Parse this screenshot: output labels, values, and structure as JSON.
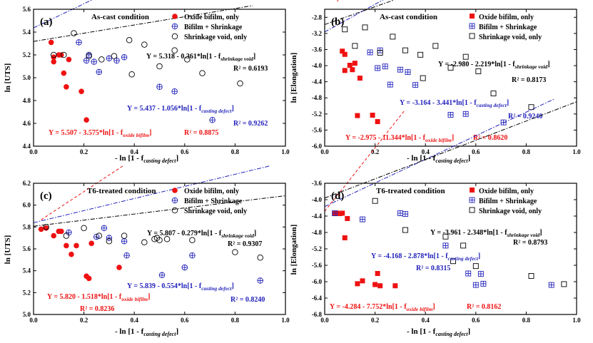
{
  "colors": {
    "oxide": "#ee1111",
    "bifilm": "#2222bb",
    "shrink": "#000000",
    "axis": "#000000"
  },
  "chart_data": [
    {
      "type": "scatter",
      "panel_label": "(a)",
      "title": "As-cast condition",
      "xlabel": "- ln [1 - f casting defect]",
      "ylabel": "ln [UTS]",
      "xlim": [
        0.0,
        1.0
      ],
      "ylim": [
        4.4,
        5.6
      ],
      "xticks": [
        "0.0",
        "0.2",
        "0.4",
        "0.6",
        "0.8",
        "1.0"
      ],
      "yticks": [
        "4.4",
        "4.6",
        "4.8",
        "5.0",
        "5.2",
        "5.4",
        "5.6"
      ],
      "legend": {
        "position": "top-right",
        "entries": [
          "Oxide bifilm, only",
          "Bifilm + Shrinkage",
          "Shrinkage void, only"
        ]
      },
      "series": [
        {
          "name": "Oxide bifilm, only",
          "x": [
            0.07,
            0.08,
            0.08,
            0.1,
            0.11,
            0.12,
            0.13,
            0.14,
            0.19,
            0.21
          ],
          "y": [
            5.31,
            5.14,
            5.18,
            5.2,
            5.2,
            5.04,
            4.92,
            5.16,
            4.88,
            4.63
          ]
        },
        {
          "name": "Bifilm + Shrinkage",
          "x": [
            0.18,
            0.21,
            0.22,
            0.24,
            0.26,
            0.3,
            0.33,
            0.36,
            0.5,
            0.56,
            0.71
          ],
          "y": [
            5.31,
            5.15,
            5.2,
            5.14,
            5.05,
            5.17,
            5.15,
            5.18,
            4.92,
            4.88,
            4.63
          ]
        },
        {
          "name": "Shrinkage void, only",
          "x": [
            0.08,
            0.12,
            0.16,
            0.22,
            0.27,
            0.32,
            0.38,
            0.39,
            0.44,
            0.5,
            0.56,
            0.61,
            0.67,
            0.82
          ],
          "y": [
            5.2,
            5.2,
            5.39,
            5.19,
            5.16,
            5.19,
            5.33,
            5.03,
            5.29,
            5.1,
            5.24,
            5.16,
            5.04,
            4.95
          ]
        }
      ],
      "fits": [
        {
          "name": "oxide",
          "equation": "Y = 5.507 - 3.575*ln[1 - f oxide bifilm]",
          "r2": "R² = 0.8875",
          "intercept": 5.507,
          "slope": 3.575,
          "x_range": [
            0.05,
            0.22
          ]
        },
        {
          "name": "bifilm",
          "equation": "Y = 5.437 - 1.056*ln[1 - f casting defect]",
          "r2": "R² = 0.9262",
          "intercept": 5.437,
          "slope": 1.056,
          "x_range": [
            0.0,
            0.76
          ]
        },
        {
          "name": "shrink",
          "equation": "Y = 5.318 - 0.361*ln[1 - f shrinkage void]",
          "r2": "R² = 0.6193",
          "intercept": 5.318,
          "slope": 0.361,
          "x_range": [
            0.0,
            0.87
          ]
        }
      ]
    },
    {
      "type": "scatter",
      "panel_label": "(b)",
      "title": "As-cast condition",
      "xlabel": "- ln [1 - f casting defect]",
      "ylabel": "ln [Elongation]",
      "xlim": [
        0.0,
        1.0
      ],
      "ylim": [
        -6.0,
        -2.6
      ],
      "xticks": [
        "0.0",
        "0.2",
        "0.4",
        "0.6",
        "0.8",
        "1.0"
      ],
      "yticks": [
        "-2.8",
        "-3.2",
        "-3.6",
        "-4.0",
        "-4.4",
        "-4.8",
        "-5.2",
        "-5.6",
        "-6.0"
      ],
      "legend": {
        "position": "top-right",
        "entries": [
          "Oxide bifilm, only",
          "Bifilm + Shrinkage",
          "Shrinkage void, only"
        ]
      },
      "series": [
        {
          "name": "Oxide bifilm, only",
          "x": [
            0.07,
            0.08,
            0.08,
            0.1,
            0.11,
            0.12,
            0.13,
            0.14,
            0.19,
            0.21
          ],
          "y": [
            -3.64,
            -3.72,
            -4.12,
            -3.99,
            -4.1,
            -3.94,
            -5.24,
            -4.31,
            -5.23,
            -5.39
          ]
        },
        {
          "name": "Bifilm + Shrinkage",
          "x": [
            0.18,
            0.21,
            0.22,
            0.24,
            0.26,
            0.3,
            0.33,
            0.36,
            0.5,
            0.56,
            0.71
          ],
          "y": [
            -3.67,
            -4.06,
            -3.62,
            -4.02,
            -4.47,
            -4.1,
            -4.16,
            -4.48,
            -5.22,
            -5.2,
            -5.41
          ]
        },
        {
          "name": "Shrinkage void, only",
          "x": [
            0.08,
            0.12,
            0.16,
            0.22,
            0.27,
            0.32,
            0.38,
            0.39,
            0.44,
            0.5,
            0.56,
            0.61,
            0.67,
            0.82
          ],
          "y": [
            -3.1,
            -3.51,
            -3.05,
            -3.68,
            -3.28,
            -3.62,
            -3.73,
            -4.31,
            -3.51,
            -4.05,
            -3.78,
            -4.14,
            -4.69,
            -5.03
          ]
        }
      ],
      "fits": [
        {
          "name": "oxide",
          "equation": "Y = -2.975 - 11.344*ln[1 - f oxide bifilm]",
          "r2": "R² = 0.8620",
          "intercept": -2.975,
          "slope": 11.344,
          "x_range": [
            0.05,
            0.22
          ]
        },
        {
          "name": "bifilm",
          "equation": "Y = -3.164 - 3.441*ln[1 - f casting defect]",
          "r2": "R² = 0.9240",
          "intercept": -3.164,
          "slope": 3.441,
          "x_range": [
            0.0,
            0.76
          ]
        },
        {
          "name": "shrink",
          "equation": "Y = -2.980 - 2.219*ln[1 - f shrinkage void]",
          "r2": "R² = 0.8173",
          "intercept": -2.98,
          "slope": 2.219,
          "x_range": [
            0.0,
            0.94
          ]
        }
      ]
    },
    {
      "type": "scatter",
      "panel_label": "(c)",
      "title": "T6-treated condition",
      "xlabel": "- ln [1 - f casting defect]",
      "ylabel": "ln [UTS]",
      "xlim": [
        0.0,
        1.0
      ],
      "ylim": [
        5.0,
        6.2
      ],
      "xticks": [
        "0.0",
        "0.2",
        "0.4",
        "0.6",
        "0.8",
        "1.0"
      ],
      "yticks": [
        "5.0",
        "5.2",
        "5.4",
        "5.6",
        "5.8",
        "6.0",
        "6.2"
      ],
      "legend": {
        "position": "top-right",
        "entries": [
          "Oxide bifilm, only",
          "Bifilm + Shrinkage",
          "Shrinkage void, only"
        ]
      },
      "series": [
        {
          "name": "Oxide bifilm, only",
          "x": [
            0.03,
            0.05,
            0.08,
            0.1,
            0.11,
            0.13,
            0.15,
            0.17,
            0.21,
            0.22,
            0.23,
            0.34
          ],
          "y": [
            5.78,
            5.79,
            5.72,
            5.76,
            5.76,
            5.63,
            5.55,
            5.63,
            5.35,
            5.33,
            5.65,
            5.43
          ]
        },
        {
          "name": "Bifilm + Shrinkage",
          "x": [
            0.14,
            0.25,
            0.28,
            0.3,
            0.36,
            0.37,
            0.51,
            0.6,
            0.63,
            0.9
          ],
          "y": [
            5.75,
            5.71,
            5.79,
            5.7,
            5.67,
            5.54,
            5.36,
            5.43,
            5.54,
            5.31
          ]
        },
        {
          "name": "Shrinkage void, only",
          "x": [
            0.05,
            0.13,
            0.2,
            0.26,
            0.3,
            0.36,
            0.44,
            0.48,
            0.49,
            0.5,
            0.53,
            0.63,
            0.8,
            0.9
          ],
          "y": [
            5.8,
            5.72,
            5.79,
            5.72,
            5.67,
            5.72,
            5.66,
            5.69,
            5.7,
            5.68,
            5.69,
            5.68,
            5.57,
            5.52
          ]
        }
      ],
      "fits": [
        {
          "name": "oxide",
          "equation": "Y = 5.820 - 1.518*ln[1 - f oxide bifilm]",
          "r2": "R² = 0.8236",
          "intercept": 5.82,
          "slope": 1.518,
          "x_range": [
            0.03,
            0.36
          ]
        },
        {
          "name": "bifilm",
          "equation": "Y = 5.839 - 0.554*ln[1 - f casting defect]",
          "r2": "R² = 0.8240",
          "intercept": 5.839,
          "slope": 0.554,
          "x_range": [
            0.0,
            0.94
          ]
        },
        {
          "name": "shrink",
          "equation": "Y = 5.807 - 0.279*ln[1 - f shrinkage void]",
          "r2": "R² = 0.9307",
          "intercept": 5.807,
          "slope": 0.279,
          "x_range": [
            0.0,
            1.0
          ]
        }
      ]
    },
    {
      "type": "scatter",
      "panel_label": "(d)",
      "title": "T6-treated condition",
      "xlabel": "- ln [1 - f casting defect]",
      "ylabel": "ln [Elongation]",
      "xlim": [
        0.0,
        1.0
      ],
      "ylim": [
        -6.8,
        -3.6
      ],
      "xticks": [
        "0.0",
        "0.2",
        "0.4",
        "0.6",
        "0.8",
        "1.0"
      ],
      "yticks": [
        "-3.6",
        "-4.0",
        "-4.4",
        "-4.8",
        "-5.2",
        "-5.6",
        "-6.0",
        "-6.4",
        "-6.8"
      ],
      "legend": {
        "position": "top-right",
        "entries": [
          "Oxide bifilm, only",
          "Bifilm + Shrinkage",
          "Shrinkage void, only"
        ]
      },
      "series": [
        {
          "name": "Oxide bifilm, only",
          "x": [
            0.04,
            0.05,
            0.06,
            0.07,
            0.08,
            0.09,
            0.13,
            0.15,
            0.2,
            0.21,
            0.22,
            0.28
          ],
          "y": [
            -4.34,
            -4.33,
            -4.34,
            -4.33,
            -4.93,
            -4.46,
            -6.05,
            -5.98,
            -6.07,
            -5.8,
            -6.1,
            -6.1
          ]
        },
        {
          "name": "Bifilm + Shrinkage",
          "x": [
            0.04,
            0.15,
            0.3,
            0.32,
            0.48,
            0.57,
            0.6,
            0.62,
            0.63,
            0.9
          ],
          "y": [
            -4.33,
            -4.48,
            -4.33,
            -4.35,
            -5.12,
            -5.8,
            -6.08,
            -5.81,
            -6.05,
            -6.08
          ]
        },
        {
          "name": "Shrinkage void, only",
          "x": [
            0.2,
            0.32,
            0.48,
            0.51,
            0.55,
            0.6,
            0.82,
            0.95
          ],
          "y": [
            -4.03,
            -4.74,
            -4.9,
            -5.5,
            -5.12,
            -5.62,
            -5.86,
            -6.06
          ]
        }
      ],
      "fits": [
        {
          "name": "oxide",
          "equation": "Y = -4.284 - 7.752*ln[1 - f oxide bifilm]",
          "r2": "R² = 0.8162",
          "intercept": -4.284,
          "slope": 7.752,
          "x_range": [
            0.0,
            0.32
          ]
        },
        {
          "name": "bifilm",
          "equation": "Y = -4.168 - 2.878*ln[1 - f casting defect]",
          "r2": "R² = 0.8315",
          "intercept": -4.168,
          "slope": 2.878,
          "x_range": [
            0.0,
            0.91
          ]
        },
        {
          "name": "shrink",
          "equation": "Y = -3.961 - 2.348*ln[1 - f shrinkage void]",
          "r2": "R² = 0.8793",
          "intercept": -3.961,
          "slope": 2.348,
          "x_range": [
            0.0,
            1.0
          ]
        }
      ]
    }
  ],
  "text": {
    "a": {
      "label": "(a)",
      "title": "As-cast condition",
      "ylabel": "ln [UTS]",
      "xlabel_main": "- ln [1 - f",
      "xlabel_sub": "casting defect",
      "xlabel_end": "]",
      "legend": [
        "Oxide bifilm, only",
        "Bifilm + Shrinkage",
        "Shrinkage void, only"
      ],
      "eqs": {
        "shrink": {
          "main": "Y = 5.318 - 0.361*ln[1 - f",
          "sub": "shrinkage void",
          "end": "]",
          "r2": "R² = 0.6193"
        },
        "bifilm": {
          "main": "Y = 5.437 - 1.056*ln[1 - f",
          "sub": "casting defect",
          "end": "]",
          "r2": "R² = 0.9262"
        },
        "oxide": {
          "main": "Y = 5.507 - 3.575*ln[1 - f",
          "sub": "oxide bifilm",
          "end": "]",
          "r2": "R² = 0.8875"
        }
      }
    },
    "b": {
      "label": "(b)",
      "title": "As-cast condition",
      "ylabel": "ln [Elongation]",
      "xlabel_main": "- ln [1 - f",
      "xlabel_sub": "casting defect",
      "xlabel_end": "]",
      "legend": [
        "Oxide bifilm, only",
        "Bifilm + Shrinkage",
        "Shrinkage void, only"
      ],
      "eqs": {
        "shrink": {
          "main": "Y = -2.980 - 2.219*ln[1 - f",
          "sub": "shrinkage void",
          "end": "]",
          "r2": "R² = 0.8173"
        },
        "bifilm": {
          "main": "Y = -3.164 - 3.441*ln[1 - f",
          "sub": "casting defect",
          "end": "]",
          "r2": "R² = 0.9240"
        },
        "oxide": {
          "main": "Y = -2.975 - 11.344*ln[1 - f",
          "sub": "oxide bifilm",
          "end": "]",
          "r2": "R² = 0.8620"
        }
      }
    },
    "c": {
      "label": "(c)",
      "title": "T6-treated condition",
      "ylabel": "ln [UTS]",
      "xlabel_main": "- ln [1 - f",
      "xlabel_sub": "casting defect",
      "xlabel_end": "]",
      "legend": [
        "Oxide bifilm, only",
        "Bifilm + Shrinkage",
        "Shrinkage void, only"
      ],
      "eqs": {
        "shrink": {
          "main": "Y = 5.807 - 0.279*ln[1 - f",
          "sub": "shrinkage void",
          "end": "]",
          "r2": "R² = 0.9307"
        },
        "bifilm": {
          "main": "Y = 5.839 - 0.554*ln[1 - f",
          "sub": "casting defect",
          "end": "]",
          "r2": "R² = 0.8240"
        },
        "oxide": {
          "main": "Y = 5.820 - 1.518*ln[1 - f",
          "sub": "oxide bifilm",
          "end": "]",
          "r2": "R² = 0.8236"
        }
      }
    },
    "d": {
      "label": "(d)",
      "title": "T6-treated condition",
      "ylabel": "ln [Elongation]",
      "xlabel_main": "- ln [1 - f",
      "xlabel_sub": "casting defect",
      "xlabel_end": "]",
      "legend": [
        "Oxide bifilm, only",
        "Bifilm + Shrinkage",
        "Shrinkage void, only"
      ],
      "eqs": {
        "shrink": {
          "main": "Y = -3.961 - 2.348*ln[1 - f",
          "sub": "shrinkage void",
          "end": "]",
          "r2": "R² = 0.8793"
        },
        "bifilm": {
          "main": "Y = -4.168 - 2.878*ln[1 - f",
          "sub": "casting defect",
          "end": "]",
          "r2": "R² = 0.8315"
        },
        "oxide": {
          "main": "Y = -4.284 - 7.752*ln[1 - f",
          "sub": "oxide bifilm",
          "end": "]",
          "r2": "R² = 0.8162"
        }
      }
    }
  }
}
